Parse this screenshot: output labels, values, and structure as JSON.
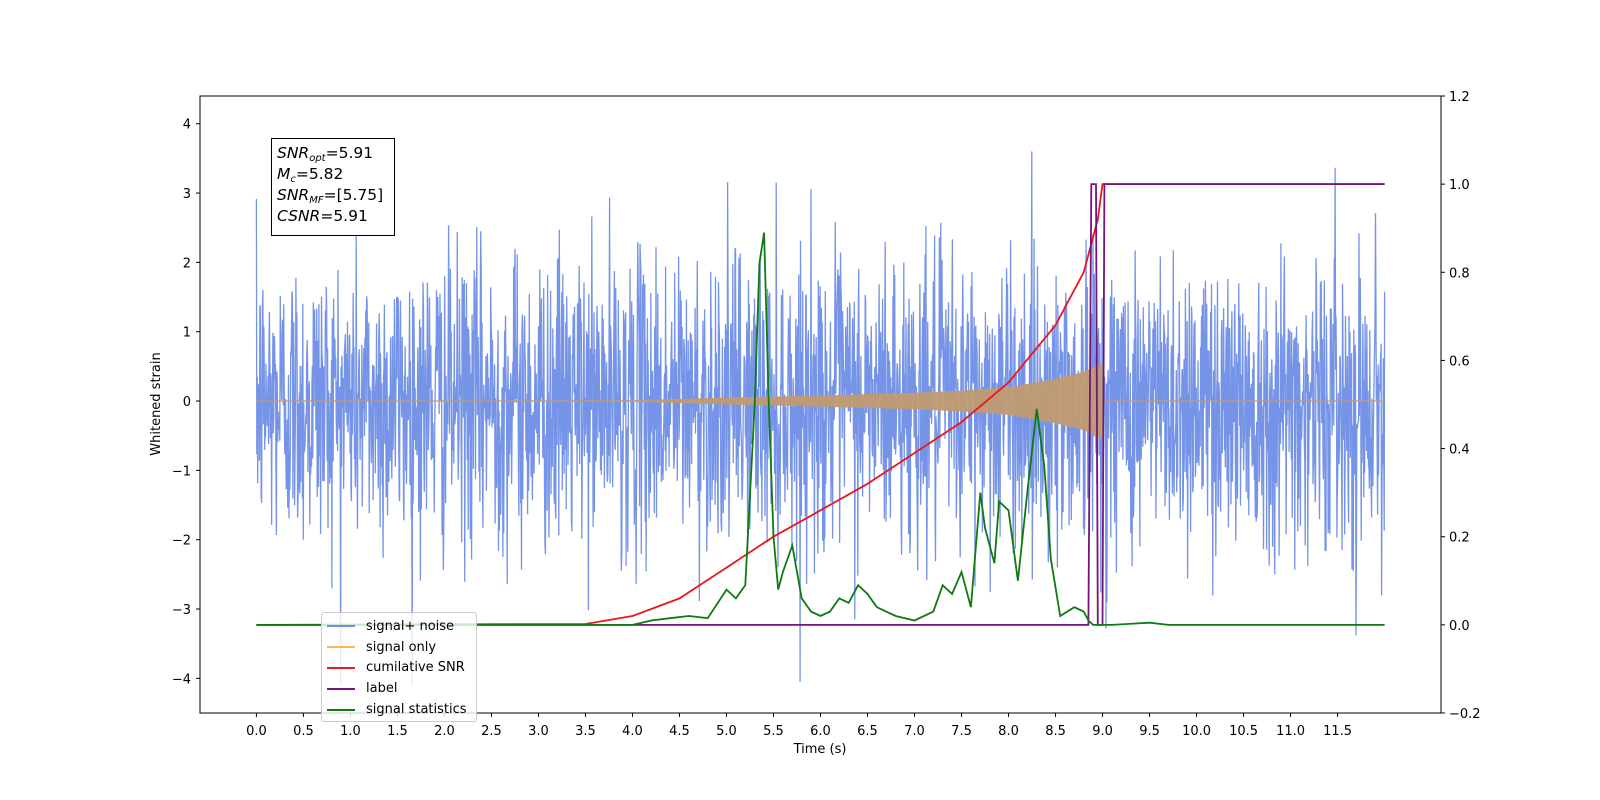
{
  "chart_data": {
    "type": "line",
    "xlabel": "Time (s)",
    "ylabel": "Whitened strain",
    "xlim": [
      -0.6,
      12.6
    ],
    "ylim": [
      -4.5,
      4.4
    ],
    "y2lim": [
      -0.2,
      1.2
    ],
    "x_ticks": [
      "0.0",
      "0.5",
      "1.0",
      "1.5",
      "2.0",
      "2.5",
      "3.0",
      "3.5",
      "4.0",
      "4.5",
      "5.0",
      "5.5",
      "6.0",
      "6.5",
      "7.0",
      "7.5",
      "8.0",
      "8.5",
      "9.0",
      "9.5",
      "10.0",
      "10.5",
      "11.0",
      "11.5"
    ],
    "y_ticks": [
      "−4",
      "−3",
      "−2",
      "−1",
      "0",
      "1",
      "2",
      "3",
      "4"
    ],
    "y2_ticks": [
      "−0.2",
      "0.0",
      "0.2",
      "0.4",
      "0.6",
      "0.8",
      "1.0",
      "1.2"
    ],
    "annotation": {
      "snr_opt": "=5.91",
      "mc": "=5.82",
      "snr_mf": "=[5.75]",
      "csnr": "=5.91"
    },
    "legend": [
      {
        "label": "signal+ noise",
        "color": "#6f8ee6"
      },
      {
        "label": "signal only",
        "color": "#f8b85a"
      },
      {
        "label": "cumilative SNR",
        "color": "#e8181c"
      },
      {
        "label": "label",
        "color": "#74157a"
      },
      {
        "label": "signal statistics",
        "color": "#0e7a12"
      }
    ],
    "series": [
      {
        "name": "signal+ noise",
        "axis": "left",
        "color": "#6f8ee6",
        "x_range": [
          0.0,
          12.0
        ],
        "description_values": {
          "std": 1.0,
          "max": 4.0,
          "min": -4.1
        }
      },
      {
        "name": "signal only",
        "axis": "left",
        "color": "#c09a72",
        "envelope": {
          "x": [
            0,
            4.0,
            5.0,
            6.0,
            7.0,
            7.5,
            8.0,
            8.5,
            8.8,
            9.0
          ],
          "amp": [
            0.0,
            0.01,
            0.05,
            0.08,
            0.12,
            0.15,
            0.2,
            0.32,
            0.42,
            0.55
          ]
        }
      },
      {
        "name": "cumilative SNR",
        "axis": "right",
        "color": "#e8181c",
        "x": [
          0,
          3.5,
          4.0,
          4.5,
          5.0,
          5.5,
          6.0,
          6.5,
          7.0,
          7.5,
          8.0,
          8.5,
          8.8,
          8.95,
          9.0,
          12.0
        ],
        "values": [
          0.0,
          0.002,
          0.02,
          0.06,
          0.13,
          0.2,
          0.26,
          0.32,
          0.39,
          0.46,
          0.55,
          0.68,
          0.8,
          0.92,
          1.0,
          1.0
        ]
      },
      {
        "name": "label",
        "axis": "right",
        "color": "#74157a",
        "x": [
          0,
          8.85,
          8.88,
          8.93,
          8.95,
          9.0,
          9.02,
          12.0
        ],
        "values": [
          0,
          0,
          1,
          1,
          0,
          0,
          1,
          1
        ]
      },
      {
        "name": "signal statistics",
        "axis": "right",
        "color": "#0e7a12",
        "x": [
          0,
          4.0,
          4.2,
          4.4,
          4.6,
          4.8,
          5.0,
          5.1,
          5.2,
          5.3,
          5.35,
          5.4,
          5.45,
          5.5,
          5.55,
          5.6,
          5.7,
          5.8,
          5.9,
          6.0,
          6.1,
          6.2,
          6.3,
          6.4,
          6.5,
          6.6,
          6.8,
          7.0,
          7.2,
          7.3,
          7.4,
          7.5,
          7.6,
          7.7,
          7.75,
          7.85,
          7.9,
          8.0,
          8.1,
          8.2,
          8.3,
          8.38,
          8.45,
          8.55,
          8.7,
          8.8,
          8.85,
          8.9,
          9.0,
          9.1,
          9.5,
          9.7,
          12.0
        ],
        "values": [
          0,
          0.0,
          0.01,
          0.015,
          0.02,
          0.015,
          0.08,
          0.06,
          0.09,
          0.5,
          0.82,
          0.89,
          0.5,
          0.2,
          0.08,
          0.12,
          0.18,
          0.06,
          0.03,
          0.02,
          0.03,
          0.06,
          0.05,
          0.09,
          0.07,
          0.04,
          0.02,
          0.01,
          0.03,
          0.09,
          0.07,
          0.12,
          0.04,
          0.3,
          0.22,
          0.14,
          0.28,
          0.26,
          0.1,
          0.3,
          0.49,
          0.36,
          0.15,
          0.02,
          0.04,
          0.03,
          0.01,
          0.0,
          0.0,
          0.0,
          0.005,
          0.0,
          0.0
        ]
      }
    ]
  }
}
